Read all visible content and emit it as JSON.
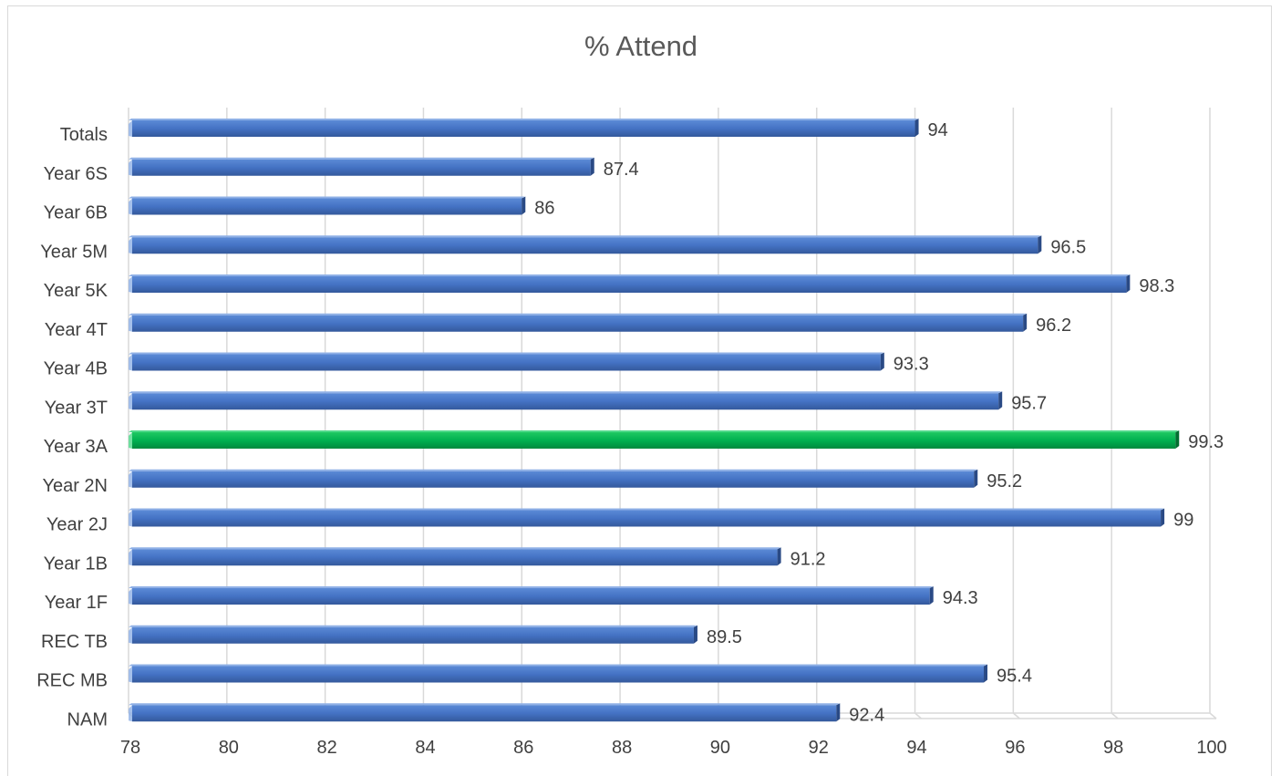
{
  "chart_data": {
    "type": "bar",
    "orientation": "horizontal",
    "title": "% Attend",
    "xlabel": "",
    "ylabel": "",
    "xlim": [
      78,
      100
    ],
    "x_ticks": [
      78,
      80,
      82,
      84,
      86,
      88,
      90,
      92,
      94,
      96,
      98,
      100
    ],
    "grid": true,
    "legend": "none",
    "categories": [
      "Totals",
      "Year 6S",
      "Year 6B",
      "Year 5M",
      "Year 5K",
      "Year 4T",
      "Year 4B",
      "Year 3T",
      "Year 3A",
      "Year 2N",
      "Year 2J",
      "Year 1B",
      "Year 1F",
      "REC TB",
      "REC MB",
      "NAM"
    ],
    "values": [
      94,
      87.4,
      86,
      96.5,
      98.3,
      96.2,
      93.3,
      95.7,
      99.3,
      95.2,
      99,
      91.2,
      94.3,
      89.5,
      95.4,
      92.4
    ],
    "data_labels": [
      "94",
      "87.4",
      "86",
      "96.5",
      "98.3",
      "96.2",
      "93.3",
      "95.7",
      "99.3",
      "95.2",
      "99",
      "91.2",
      "94.3",
      "89.5",
      "95.4",
      "92.4"
    ],
    "colors": {
      "default_bar": "#4472c4",
      "highlight_bar": "#00b050",
      "highlight_category": "Year 3A",
      "gridline": "#d9d9d9"
    }
  }
}
